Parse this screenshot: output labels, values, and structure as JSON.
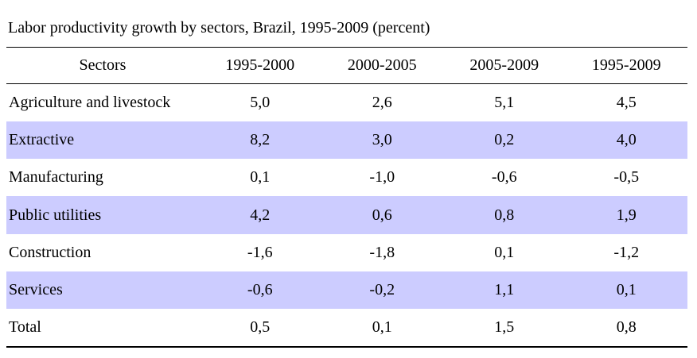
{
  "title": "Labor productivity growth by sectors, Brazil, 1995-2009 (percent)",
  "colors": {
    "row_shade": "#ccccff",
    "rule": "#000000"
  },
  "table": {
    "headers": [
      "Sectors",
      "1995-2000",
      "2000-2005",
      "2005-2009",
      "1995-2009"
    ],
    "rows": [
      {
        "label": "Agriculture and livestock",
        "values": [
          "5,0",
          "2,6",
          "5,1",
          "4,5"
        ]
      },
      {
        "label": "Extractive",
        "values": [
          "8,2",
          "3,0",
          "0,2",
          "4,0"
        ]
      },
      {
        "label": "Manufacturing",
        "values": [
          "0,1",
          "-1,0",
          "-0,6",
          "-0,5"
        ]
      },
      {
        "label": "Public utilities",
        "values": [
          "4,2",
          "0,6",
          "0,8",
          "1,9"
        ]
      },
      {
        "label": "Construction",
        "values": [
          "-1,6",
          "-1,8",
          "0,1",
          "-1,2"
        ]
      },
      {
        "label": "Services",
        "values": [
          "-0,6",
          "-0,2",
          "1,1",
          "0,1"
        ]
      },
      {
        "label": "Total",
        "values": [
          "0,5",
          "0,1",
          "1,5",
          "0,8"
        ]
      }
    ]
  }
}
